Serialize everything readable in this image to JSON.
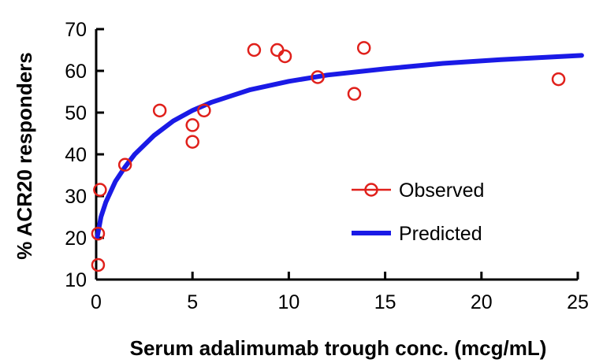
{
  "chart_data": {
    "type": "scatter",
    "title": "",
    "xlabel": "Serum adalimumab trough conc. (mcg/mL)",
    "ylabel": "% ACR20 responders",
    "xlim": [
      0,
      25
    ],
    "ylim": [
      10,
      70
    ],
    "xticks": [
      0,
      5,
      10,
      15,
      20,
      25
    ],
    "yticks": [
      10,
      20,
      30,
      40,
      50,
      60,
      70
    ],
    "grid": false,
    "legend_position": "center-right",
    "series": [
      {
        "name": "Observed",
        "kind": "scatter",
        "marker": "open-circle",
        "color": "#e0201b",
        "points": [
          {
            "x": 0.1,
            "y": 13.5
          },
          {
            "x": 0.1,
            "y": 21
          },
          {
            "x": 0.2,
            "y": 31.5
          },
          {
            "x": 1.5,
            "y": 37.5
          },
          {
            "x": 3.3,
            "y": 50.5
          },
          {
            "x": 5.0,
            "y": 47
          },
          {
            "x": 5.0,
            "y": 43
          },
          {
            "x": 5.6,
            "y": 50.5
          },
          {
            "x": 8.2,
            "y": 65
          },
          {
            "x": 9.4,
            "y": 65
          },
          {
            "x": 9.8,
            "y": 63.5
          },
          {
            "x": 11.5,
            "y": 58.5
          },
          {
            "x": 13.4,
            "y": 54.5
          },
          {
            "x": 13.9,
            "y": 65.5
          },
          {
            "x": 24.0,
            "y": 58
          }
        ]
      },
      {
        "name": "Predicted",
        "kind": "line",
        "color": "#1a1ae6",
        "points": [
          {
            "x": 0.05,
            "y": 20
          },
          {
            "x": 0.25,
            "y": 25
          },
          {
            "x": 0.5,
            "y": 28.5
          },
          {
            "x": 1.0,
            "y": 33.5
          },
          {
            "x": 1.5,
            "y": 37
          },
          {
            "x": 2.0,
            "y": 40
          },
          {
            "x": 3.0,
            "y": 44.5
          },
          {
            "x": 4.0,
            "y": 48
          },
          {
            "x": 5.0,
            "y": 50.5
          },
          {
            "x": 6.0,
            "y": 52.5
          },
          {
            "x": 7.0,
            "y": 54
          },
          {
            "x": 8.0,
            "y": 55.5
          },
          {
            "x": 10.0,
            "y": 57.5
          },
          {
            "x": 12.0,
            "y": 59
          },
          {
            "x": 15.0,
            "y": 60.5
          },
          {
            "x": 18.0,
            "y": 61.8
          },
          {
            "x": 21.0,
            "y": 62.7
          },
          {
            "x": 25.2,
            "y": 63.7
          }
        ]
      }
    ]
  }
}
